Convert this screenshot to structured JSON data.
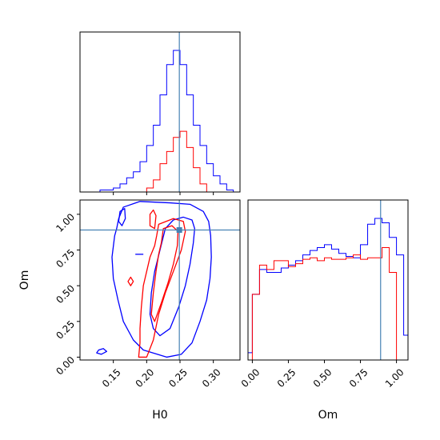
{
  "chart_data": {
    "type": "corner",
    "parameters": [
      "H0",
      "Om"
    ],
    "truths": {
      "H0": 0.249,
      "Om": 0.89
    },
    "colors": {
      "blue": "#0000ff",
      "red": "#ff0000",
      "truth": "#4682b4"
    },
    "x_ticks": {
      "H0": [
        "0.15",
        "0.20",
        "0.25",
        "0.30"
      ],
      "Om": [
        "0.00",
        "0.25",
        "0.50",
        "0.75",
        "1.00"
      ]
    },
    "y_ticks": {
      "Om": [
        "0.00",
        "0.25",
        "0.50",
        "0.75",
        "1.00"
      ]
    },
    "marginals": [
      {
        "param": "H0",
        "xlim": [
          0.1,
          0.34
        ],
        "bins": [
          0.1,
          0.11,
          0.12,
          0.13,
          0.14,
          0.15,
          0.16,
          0.17,
          0.18,
          0.19,
          0.2,
          0.21,
          0.22,
          0.23,
          0.24,
          0.25,
          0.26,
          0.27,
          0.28,
          0.29,
          0.3,
          0.31,
          0.32,
          0.33,
          0.34
        ],
        "series": [
          {
            "color": "blue",
            "counts": [
              0,
              0,
              0,
              1,
              1,
              2,
              4,
              7,
              10,
              15,
              23,
              33,
              48,
              63,
              70,
              63,
              48,
              33,
              23,
              14,
              8,
              4,
              1,
              0
            ]
          },
          {
            "color": "red",
            "counts": [
              0,
              0,
              0,
              0,
              0,
              0,
              0,
              0,
              0,
              0,
              2,
              6,
              14,
              20,
              27,
              30,
              22,
              12,
              4,
              0,
              0,
              0,
              0,
              0
            ]
          }
        ]
      },
      {
        "param": "Om",
        "xlim": [
          -0.03,
          1.08
        ],
        "bins": [
          -0.03,
          0.0,
          0.05,
          0.1,
          0.15,
          0.2,
          0.25,
          0.3,
          0.35,
          0.4,
          0.45,
          0.5,
          0.55,
          0.6,
          0.65,
          0.7,
          0.75,
          0.8,
          0.85,
          0.9,
          0.95,
          1.0,
          1.05,
          1.08
        ],
        "series": [
          {
            "color": "blue",
            "counts": [
              5,
              45,
              62,
              60,
              60,
              63,
              65,
              68,
              72,
              75,
              77,
              79,
              76,
              73,
              71,
              70,
              79,
              93,
              97,
              94,
              84,
              72,
              17
            ]
          },
          {
            "color": "red",
            "counts": [
              0,
              45,
              65,
              62,
              68,
              68,
              64,
              66,
              69,
              70,
              68,
              70,
              69,
              69,
              70,
              72,
              69,
              70,
              70,
              77,
              60,
              0,
              0
            ]
          }
        ]
      }
    ],
    "joint": {
      "x": "H0",
      "y": "Om",
      "xlim": [
        0.1,
        0.34
      ],
      "ylim": [
        -0.02,
        1.1
      ],
      "contours": [
        {
          "color": "blue",
          "points": [
            [
              0.235,
              1.08
            ],
            [
              0.19,
              1.09
            ],
            [
              0.165,
              1.05
            ],
            [
              0.158,
              0.97
            ],
            [
              0.155,
              0.9
            ],
            [
              0.152,
              0.85
            ],
            [
              0.148,
              0.7
            ],
            [
              0.15,
              0.55
            ],
            [
              0.157,
              0.4
            ],
            [
              0.165,
              0.25
            ],
            [
              0.18,
              0.12
            ],
            [
              0.195,
              0.05
            ],
            [
              0.23,
              0.0
            ],
            [
              0.252,
              0.02
            ],
            [
              0.268,
              0.1
            ],
            [
              0.28,
              0.25
            ],
            [
              0.29,
              0.4
            ],
            [
              0.295,
              0.55
            ],
            [
              0.297,
              0.7
            ],
            [
              0.296,
              0.85
            ],
            [
              0.293,
              0.95
            ],
            [
              0.285,
              1.02
            ],
            [
              0.265,
              1.07
            ]
          ]
        },
        {
          "color": "blue",
          "points": [
            [
              0.158,
              0.95
            ],
            [
              0.16,
              1.02
            ],
            [
              0.167,
              1.04
            ],
            [
              0.168,
              0.97
            ],
            [
              0.163,
              0.92
            ]
          ]
        },
        {
          "color": "blue",
          "points": [
            [
              0.128,
              0.05
            ],
            [
              0.125,
              0.03
            ],
            [
              0.132,
              0.02
            ],
            [
              0.14,
              0.04
            ],
            [
              0.135,
              0.06
            ]
          ]
        },
        {
          "color": "blue",
          "points": [
            [
              0.24,
              0.96
            ],
            [
              0.228,
              0.9
            ],
            [
              0.22,
              0.75
            ],
            [
              0.212,
              0.6
            ],
            [
              0.207,
              0.45
            ],
            [
              0.205,
              0.3
            ],
            [
              0.21,
              0.2
            ],
            [
              0.22,
              0.15
            ],
            [
              0.235,
              0.2
            ],
            [
              0.248,
              0.35
            ],
            [
              0.258,
              0.5
            ],
            [
              0.265,
              0.65
            ],
            [
              0.27,
              0.8
            ],
            [
              0.272,
              0.9
            ],
            [
              0.268,
              0.96
            ],
            [
              0.255,
              0.98
            ]
          ]
        },
        {
          "color": "red",
          "points": [
            [
              0.218,
              0.93
            ],
            [
              0.215,
              0.85
            ],
            [
              0.212,
              0.78
            ],
            [
              0.205,
              0.7
            ],
            [
              0.2,
              0.6
            ],
            [
              0.195,
              0.5
            ],
            [
              0.192,
              0.35
            ],
            [
              0.19,
              0.2
            ],
            [
              0.19,
              0.1
            ],
            [
              0.188,
              0.0
            ],
            [
              0.2,
              0.0
            ],
            [
              0.21,
              0.12
            ],
            [
              0.218,
              0.3
            ],
            [
              0.228,
              0.45
            ],
            [
              0.24,
              0.6
            ],
            [
              0.252,
              0.75
            ],
            [
              0.258,
              0.88
            ],
            [
              0.255,
              0.95
            ],
            [
              0.24,
              0.97
            ]
          ]
        },
        {
          "color": "red",
          "points": [
            [
              0.225,
              0.9
            ],
            [
              0.222,
              0.8
            ],
            [
              0.218,
              0.72
            ],
            [
              0.214,
              0.6
            ],
            [
              0.21,
              0.45
            ],
            [
              0.207,
              0.3
            ],
            [
              0.212,
              0.25
            ],
            [
              0.222,
              0.38
            ],
            [
              0.232,
              0.52
            ],
            [
              0.24,
              0.65
            ],
            [
              0.246,
              0.78
            ],
            [
              0.247,
              0.88
            ],
            [
              0.238,
              0.92
            ]
          ]
        },
        {
          "color": "red",
          "points": [
            [
              0.205,
              1.0
            ],
            [
              0.205,
              0.92
            ],
            [
              0.212,
              0.9
            ],
            [
              0.214,
              0.99
            ],
            [
              0.21,
              1.03
            ]
          ]
        },
        {
          "color": "red",
          "points": [
            [
              0.172,
              0.53
            ],
            [
              0.176,
              0.5
            ],
            [
              0.18,
              0.53
            ],
            [
              0.176,
              0.56
            ]
          ]
        }
      ]
    }
  }
}
